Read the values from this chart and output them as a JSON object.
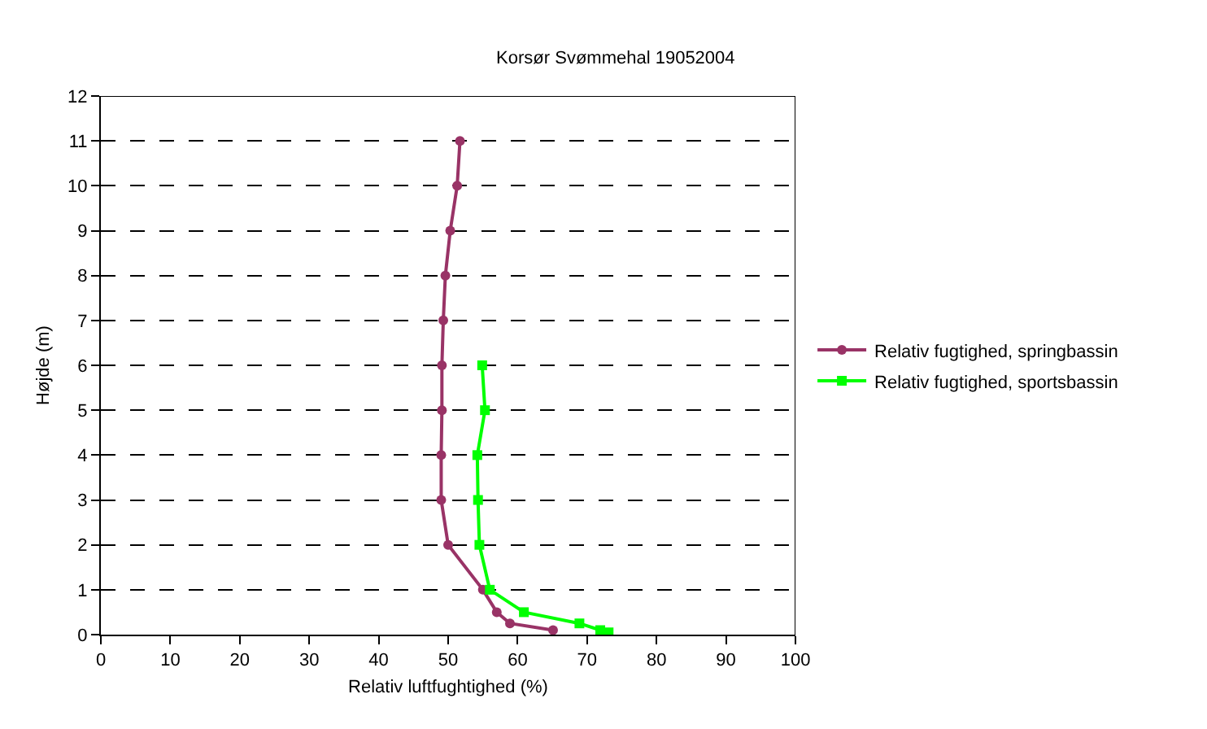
{
  "chart_data": {
    "type": "line",
    "title": "Korsør Svømmehal 19052004",
    "xlabel": "Relativ luftfughtighed (%)",
    "ylabel": "Højde (m)",
    "xlim": [
      0,
      100
    ],
    "xticks": [
      0,
      10,
      20,
      30,
      40,
      50,
      60,
      70,
      80,
      90,
      100
    ],
    "ylim": [
      0,
      12
    ],
    "yticks": [
      0,
      1,
      2,
      3,
      4,
      5,
      6,
      7,
      8,
      9,
      10,
      11,
      12
    ],
    "grid": "y",
    "legend": "right",
    "series": [
      {
        "name": "Relativ fugtighed, springbassin",
        "color": "#993366",
        "marker": "circle",
        "x": [
          51.7,
          51.3,
          50.3,
          49.6,
          49.3,
          49.1,
          49.1,
          49.0,
          49.0,
          50.0,
          55.0,
          57.0,
          58.9,
          65.1
        ],
        "values": [
          11,
          10,
          9,
          8,
          7,
          6,
          5,
          4,
          3,
          2,
          1,
          0.5,
          0.25,
          0.1
        ]
      },
      {
        "name": "Relativ fugtighed, sportsbassin",
        "color": "#00ff00",
        "marker": "square",
        "x": [
          54.9,
          55.3,
          54.2,
          54.3,
          54.5,
          56.0,
          60.9,
          68.9,
          71.9,
          73.1
        ],
        "values": [
          6,
          5,
          4,
          3,
          2,
          1,
          0.5,
          0.25,
          0.1,
          0.05
        ]
      }
    ]
  }
}
